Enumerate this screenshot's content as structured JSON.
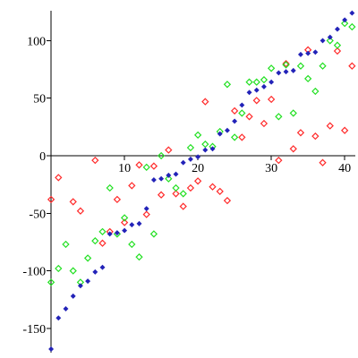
{
  "chart_data": {
    "type": "scatter",
    "title": "",
    "xlabel": "",
    "ylabel": "",
    "xlim": [
      -0.5,
      41.2
    ],
    "ylim": [
      -168,
      126
    ],
    "x_ticks": [
      10,
      20,
      30,
      40
    ],
    "y_ticks": [
      -150,
      -100,
      -50,
      0,
      50,
      100
    ],
    "marker": "diamond",
    "grid": false,
    "colors": {
      "series1": "#2323b8",
      "series2": "#ff2a2a",
      "series3": "#22e022"
    },
    "series": [
      {
        "key": "blue",
        "x": [
          0,
          1,
          2,
          3,
          4,
          5,
          6,
          7,
          8,
          9,
          10,
          11,
          12,
          13,
          14,
          15,
          16,
          17,
          18,
          19,
          20,
          21,
          22,
          23,
          24,
          25,
          26,
          27,
          28,
          29,
          30,
          31,
          32,
          33,
          34,
          35,
          36,
          37,
          38,
          39,
          40,
          41
        ],
        "y": [
          -168,
          -141,
          -133,
          -122,
          -113,
          -109,
          -101,
          -97,
          -68,
          -67,
          -65,
          -60,
          -59,
          -46,
          -21,
          -20,
          -17,
          -16,
          -6,
          -3,
          -1,
          5,
          6,
          19,
          22,
          30,
          44,
          55,
          57,
          60,
          64,
          72,
          73,
          74,
          88,
          89,
          90,
          100,
          103,
          110,
          118,
          124
        ]
      },
      {
        "key": "red",
        "x": [
          0,
          1,
          3,
          4,
          6,
          7,
          8,
          9,
          10,
          11,
          12,
          13,
          14,
          15,
          16,
          17,
          18,
          19,
          20,
          21,
          22,
          23,
          24,
          25,
          26,
          27,
          28,
          29,
          30,
          31,
          32,
          33,
          34,
          35,
          36,
          37,
          38,
          39,
          40,
          41
        ],
        "y": [
          -38,
          -19,
          -40,
          -48,
          -4,
          -76,
          -66,
          -38,
          -58,
          -26,
          -8,
          -51,
          -9,
          -34,
          5,
          -33,
          -44,
          -28,
          -22,
          47,
          -27,
          -31,
          -39,
          39,
          16,
          34,
          48,
          28,
          49,
          -4,
          80,
          6,
          20,
          92,
          17,
          -6,
          26,
          91,
          22,
          78
        ]
      },
      {
        "key": "green",
        "x": [
          0,
          1,
          2,
          3,
          4,
          5,
          6,
          7,
          8,
          9,
          10,
          11,
          12,
          13,
          14,
          15,
          16,
          17,
          18,
          19,
          20,
          21,
          22,
          23,
          24,
          25,
          26,
          27,
          28,
          29,
          30,
          31,
          32,
          33,
          34,
          35,
          36,
          37,
          38,
          39,
          40,
          41
        ],
        "y": [
          -110,
          -98,
          -77,
          -100,
          -110,
          -89,
          -74,
          -66,
          -28,
          -68,
          -54,
          -77,
          -88,
          -10,
          -68,
          0,
          -20,
          -28,
          -33,
          7,
          18,
          10,
          8,
          21,
          62,
          16,
          37,
          64,
          64,
          66,
          76,
          34,
          79,
          37,
          78,
          67,
          56,
          78,
          100,
          96,
          115,
          112
        ]
      }
    ]
  }
}
